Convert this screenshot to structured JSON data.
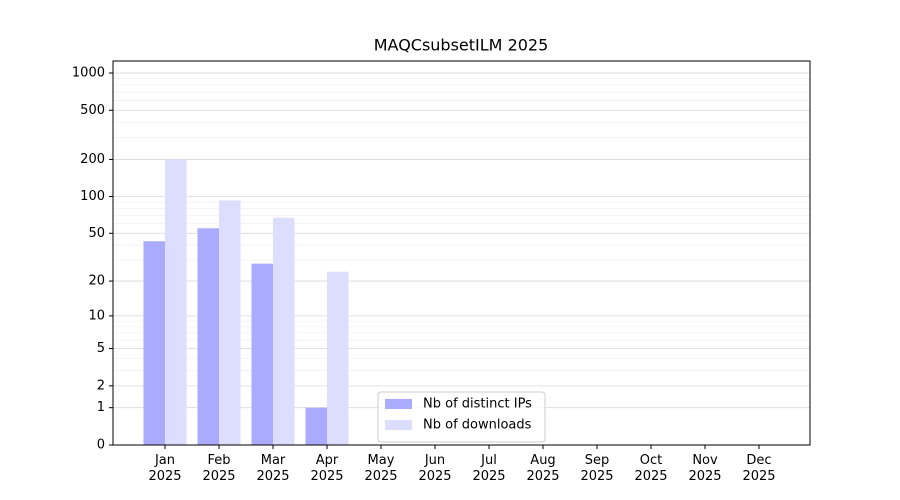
{
  "chart_data": {
    "type": "bar",
    "title": "MAQCsubsetILM 2025",
    "categories": [
      "Jan 2025",
      "Feb 2025",
      "Mar 2025",
      "Apr 2025",
      "May 2025",
      "Jun 2025",
      "Jul 2025",
      "Aug 2025",
      "Sep 2025",
      "Oct 2025",
      "Nov 2025",
      "Dec 2025"
    ],
    "series": [
      {
        "name": "Nb of distinct IPs",
        "color": "#aaaaff",
        "values": [
          43,
          55,
          28,
          1,
          0,
          0,
          0,
          0,
          0,
          0,
          0,
          0
        ]
      },
      {
        "name": "Nb of downloads",
        "color": "#ddddff",
        "values": [
          200,
          93,
          67,
          24,
          0,
          0,
          0,
          0,
          0,
          0,
          0,
          0
        ]
      }
    ],
    "yscale": "symlog",
    "ylim": [
      0,
      1250
    ],
    "yticks": [
      0,
      1,
      2,
      5,
      10,
      20,
      50,
      100,
      200,
      500,
      1000
    ],
    "minor_yticks": [
      3,
      4,
      6,
      7,
      8,
      9,
      30,
      40,
      60,
      70,
      80,
      90,
      300,
      400,
      600,
      700,
      800,
      900
    ],
    "grid": true,
    "legend": "lower center"
  }
}
